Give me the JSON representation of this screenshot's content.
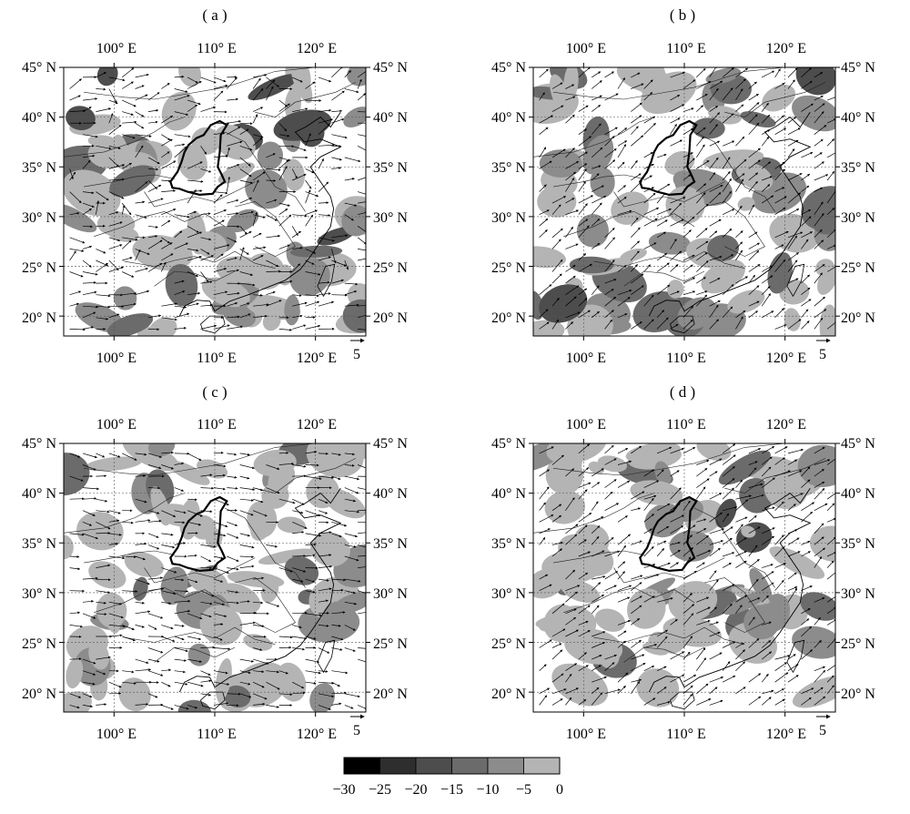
{
  "panels": [
    {
      "label": "( a )"
    },
    {
      "label": "( b )"
    },
    {
      "label": "( c )"
    },
    {
      "label": "( d )"
    }
  ],
  "axes": {
    "x_ticks": [
      "100° E",
      "110° E",
      "120° E"
    ],
    "x_values": [
      100,
      110,
      120
    ],
    "y_ticks": [
      "45° N",
      "40° N",
      "35° N",
      "30° N",
      "25° N",
      "20° N"
    ],
    "y_values": [
      45,
      40,
      35,
      30,
      25,
      20
    ],
    "lon_range": [
      95,
      125
    ],
    "lat_range": [
      18,
      45
    ],
    "grid": "dashed"
  },
  "reference_vector": {
    "label": "5",
    "value": 5
  },
  "colorbar": {
    "ticks": [
      "−30",
      "−25",
      "−20",
      "−15",
      "−10",
      "−5",
      "0"
    ],
    "bins": [
      {
        "from": -30,
        "to": -25,
        "color": "#000000"
      },
      {
        "from": -25,
        "to": -20,
        "color": "#2e2e2e"
      },
      {
        "from": -20,
        "to": -15,
        "color": "#4d4d4d"
      },
      {
        "from": -15,
        "to": -10,
        "color": "#6b6b6b"
      },
      {
        "from": -10,
        "to": -5,
        "color": "#8c8c8c"
      },
      {
        "from": -5,
        "to": 0,
        "color": "#b4b4b4"
      }
    ]
  }
}
